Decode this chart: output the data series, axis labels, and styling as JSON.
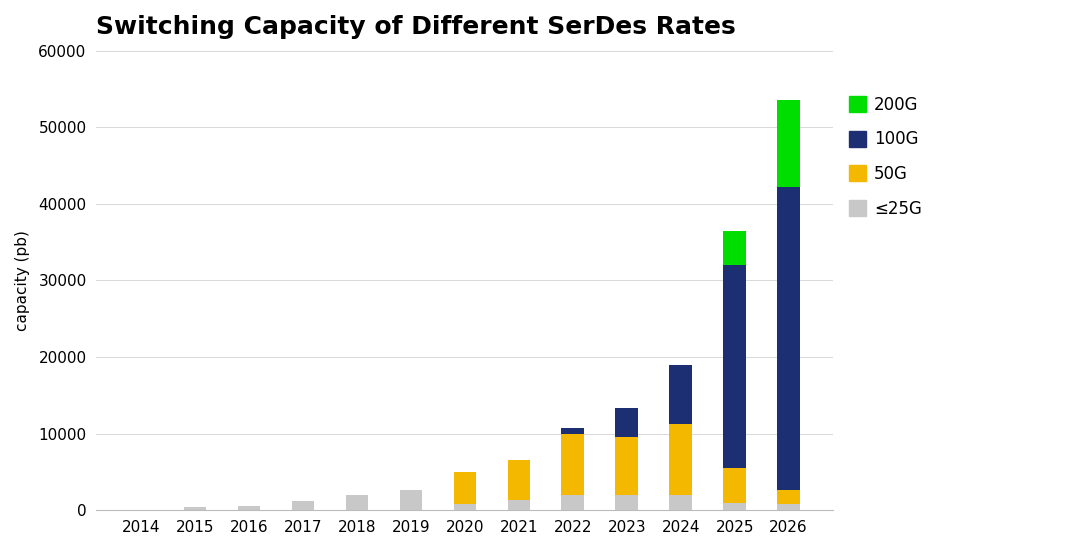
{
  "title": "Switching Capacity of Different SerDes Rates",
  "ylabel": "capacity (pb)",
  "years": [
    2014,
    2015,
    2016,
    2017,
    2018,
    2019,
    2020,
    2021,
    2022,
    2023,
    2024,
    2025,
    2026
  ],
  "le25g": [
    100,
    400,
    600,
    1200,
    2000,
    2600,
    800,
    1400,
    2000,
    2000,
    2000,
    1000,
    800
  ],
  "50g": [
    0,
    0,
    0,
    0,
    0,
    0,
    4200,
    5200,
    8000,
    7600,
    9200,
    4500,
    1800
  ],
  "100g": [
    0,
    0,
    0,
    0,
    0,
    0,
    0,
    0,
    800,
    3800,
    7800,
    26500,
    39600
  ],
  "200g": [
    0,
    0,
    0,
    0,
    0,
    0,
    0,
    0,
    0,
    0,
    0,
    4500,
    11400
  ],
  "colors": {
    "le25g": "#c8c8c8",
    "50g": "#f5b800",
    "100g": "#1b2f72",
    "200g": "#00dd00"
  },
  "legend_labels": [
    "200G",
    "100G",
    "50G",
    "≤25G"
  ],
  "ylim": [
    0,
    60000
  ],
  "yticks": [
    0,
    10000,
    20000,
    30000,
    40000,
    50000,
    60000
  ],
  "background_color": "#ffffff",
  "title_fontsize": 18,
  "bar_width": 0.42,
  "figsize": [
    10.72,
    5.5
  ],
  "dpi": 100
}
